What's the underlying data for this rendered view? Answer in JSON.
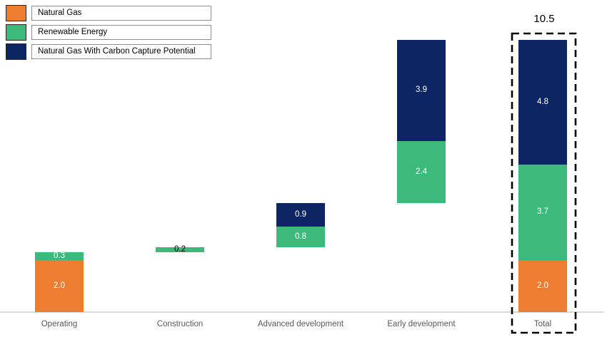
{
  "legend": {
    "items": [
      {
        "label": "Natural Gas",
        "color": "#ED7D31"
      },
      {
        "label": "Renewable Energy",
        "color": "#3EB97C"
      },
      {
        "label": "Natural Gas With Carbon Capture Potential",
        "color": "#0E2563"
      }
    ]
  },
  "chart_data": {
    "type": "bar",
    "subtype": "stacked-waterfall",
    "title": "",
    "xlabel": "",
    "ylabel": "",
    "ylim": [
      0,
      11.5
    ],
    "grid": false,
    "legend_position": "top-left",
    "axis_color": "#D9D9D9",
    "category_label_color": "#595959",
    "categories": [
      "Operating",
      "Construction",
      "Advanced development",
      "Early development",
      "Total"
    ],
    "series_colors": {
      "natural_gas": "#ED7D31",
      "renewable_energy": "#3EB97C",
      "carbon_capture": "#0E2563"
    },
    "series_names": {
      "natural_gas": "Natural Gas",
      "renewable_energy": "Renewable Energy",
      "carbon_capture": "Natural Gas With Carbon Capture Potential"
    },
    "bars": [
      {
        "category": "Operating",
        "base": 0.0,
        "segments": [
          {
            "series": "natural_gas",
            "value": 2.0,
            "label": "2.0",
            "label_color": "#FFFFFF"
          },
          {
            "series": "renewable_energy",
            "value": 0.3,
            "label": "0.3",
            "label_color": "#FFFFFF"
          }
        ]
      },
      {
        "category": "Construction",
        "base": 2.3,
        "segments": [
          {
            "series": "renewable_energy",
            "value": 0.2,
            "label": "0.2",
            "label_color": "#000000"
          }
        ]
      },
      {
        "category": "Advanced development",
        "base": 2.5,
        "segments": [
          {
            "series": "renewable_energy",
            "value": 0.8,
            "label": "0.8",
            "label_color": "#FFFFFF"
          },
          {
            "series": "carbon_capture",
            "value": 0.9,
            "label": "0.9",
            "label_color": "#FFFFFF"
          }
        ]
      },
      {
        "category": "Early development",
        "base": 4.2,
        "segments": [
          {
            "series": "renewable_energy",
            "value": 2.4,
            "label": "2.4",
            "label_color": "#FFFFFF"
          },
          {
            "series": "carbon_capture",
            "value": 3.9,
            "label": "3.9",
            "label_color": "#FFFFFF"
          }
        ]
      },
      {
        "category": "Total",
        "base": 0.0,
        "is_total": true,
        "segments": [
          {
            "series": "natural_gas",
            "value": 2.0,
            "label": "2.0",
            "label_color": "#FFFFFF"
          },
          {
            "series": "renewable_energy",
            "value": 3.7,
            "label": "3.7",
            "label_color": "#FFFFFF"
          },
          {
            "series": "carbon_capture",
            "value": 4.8,
            "label": "4.8",
            "label_color": "#FFFFFF"
          }
        ]
      }
    ],
    "total_annotation": "10.5"
  }
}
